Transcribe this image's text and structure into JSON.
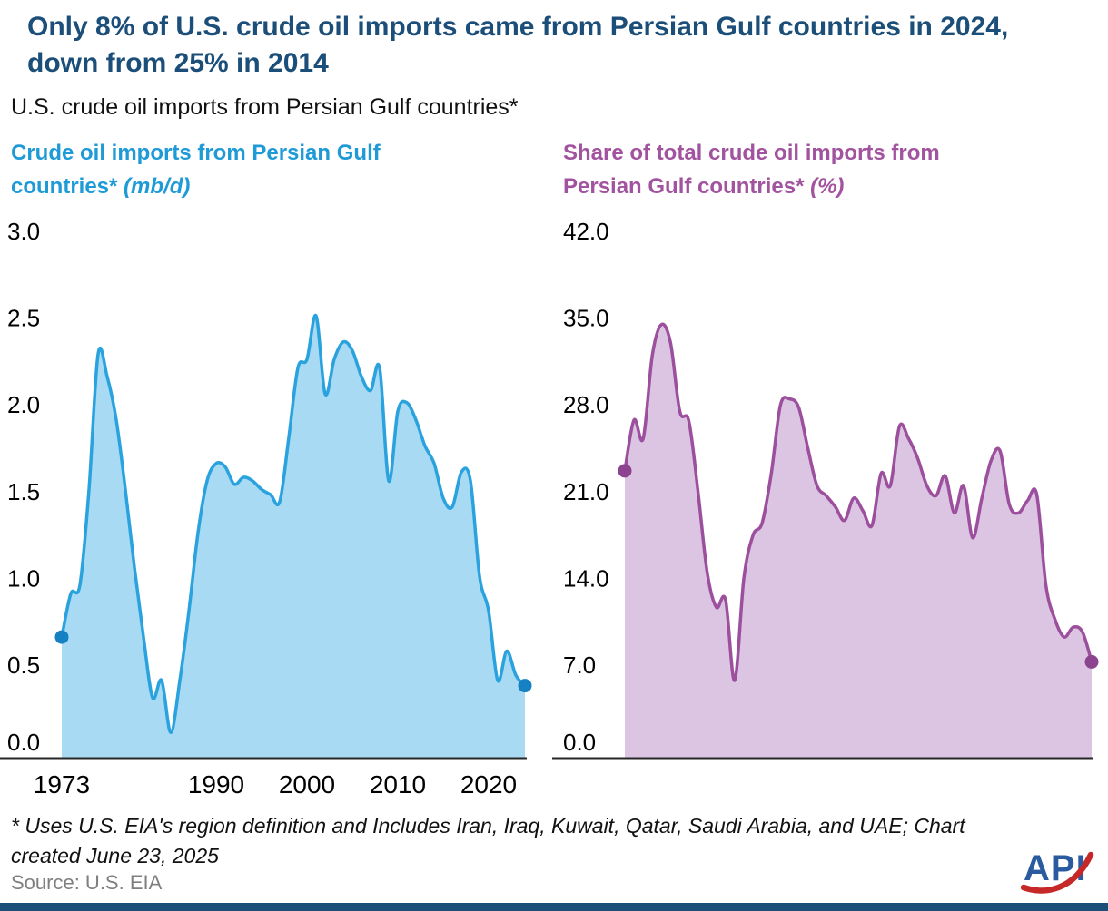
{
  "header": {
    "title_line1": "Only 8% of U.S. crude oil imports came from Persian Gulf countries in 2024,",
    "title_line2": "down from 25% in 2014",
    "subtitle": "U.S. crude oil imports from Persian Gulf countries*"
  },
  "colors": {
    "title_navy": "#1b4e78",
    "imports_blue": "#1e9ad6",
    "share_purple": "#a2539f",
    "axis_black": "#262626",
    "source_gray": "#7f7f7f",
    "footer_bar_navy": "#1b4e78",
    "logo_blue": "#2a5a9f",
    "logo_red": "#c62828"
  },
  "chart_data": [
    {
      "id": "imports",
      "type": "area",
      "title": "Crude oil imports from Persian Gulf countries*",
      "unit_label": "(mb/d)",
      "line_color": "#29a2de",
      "fill_color": "#a9daf3",
      "dot_color": "#1581c2",
      "ylim": [
        0,
        3.0
      ],
      "yticks": [
        3.0,
        2.5,
        2.0,
        1.5,
        1.0,
        0.5,
        0.0
      ],
      "xticks": [
        1973,
        1990,
        2000,
        2010,
        2020
      ],
      "x": [
        1973,
        1974,
        1975,
        1976,
        1977,
        1978,
        1979,
        1980,
        1981,
        1982,
        1983,
        1984,
        1985,
        1986,
        1987,
        1988,
        1989,
        1990,
        1991,
        1992,
        1993,
        1994,
        1995,
        1996,
        1997,
        1998,
        1999,
        2000,
        2001,
        2002,
        2003,
        2004,
        2005,
        2006,
        2007,
        2008,
        2009,
        2010,
        2011,
        2012,
        2013,
        2014,
        2015,
        2016,
        2017,
        2018,
        2019,
        2020,
        2021,
        2022,
        2023,
        2024
      ],
      "values": [
        0.7,
        0.95,
        1.0,
        1.55,
        2.33,
        2.2,
        1.95,
        1.55,
        1.1,
        0.7,
        0.35,
        0.45,
        0.15,
        0.45,
        0.85,
        1.3,
        1.6,
        1.7,
        1.68,
        1.58,
        1.62,
        1.6,
        1.55,
        1.52,
        1.48,
        1.85,
        2.25,
        2.3,
        2.55,
        2.1,
        2.3,
        2.4,
        2.35,
        2.2,
        2.12,
        2.25,
        1.6,
        2.0,
        2.05,
        1.95,
        1.8,
        1.7,
        1.5,
        1.45,
        1.65,
        1.6,
        1.05,
        0.85,
        0.45,
        0.62,
        0.48,
        0.42
      ]
    },
    {
      "id": "share",
      "type": "area",
      "title": "Share of total crude oil imports from Persian Gulf countries*",
      "unit_label": "(%)",
      "line_color": "#9c4f9d",
      "fill_color": "#dcc5e2",
      "dot_color": "#8d4490",
      "ylim": [
        0,
        42.0
      ],
      "yticks": [
        42.0,
        35.0,
        28.0,
        21.0,
        14.0,
        7.0,
        0.0
      ],
      "xticks": [],
      "x": [
        1973,
        1974,
        1975,
        1976,
        1977,
        1978,
        1979,
        1980,
        1981,
        1982,
        1983,
        1984,
        1985,
        1986,
        1987,
        1988,
        1989,
        1990,
        1991,
        1992,
        1993,
        1994,
        1995,
        1996,
        1997,
        1998,
        1999,
        2000,
        2001,
        2002,
        2003,
        2004,
        2005,
        2006,
        2007,
        2008,
        2009,
        2010,
        2011,
        2012,
        2013,
        2014,
        2015,
        2016,
        2017,
        2018,
        2019,
        2020,
        2021,
        2022,
        2023,
        2024
      ],
      "values": [
        23.2,
        27.3,
        25.8,
        32.5,
        35.0,
        33.5,
        28.0,
        27.2,
        21.5,
        15.0,
        12.2,
        12.8,
        6.3,
        14.5,
        18.0,
        19.0,
        23.0,
        28.5,
        29.0,
        28.3,
        25.0,
        22.0,
        21.2,
        20.3,
        19.2,
        21.0,
        20.0,
        18.8,
        23.0,
        22.0,
        26.8,
        25.8,
        24.2,
        22.0,
        21.2,
        22.8,
        19.8,
        22.0,
        17.8,
        21.0,
        24.0,
        24.8,
        20.5,
        19.8,
        20.8,
        21.3,
        14.0,
        11.2,
        9.8,
        10.6,
        10.2,
        7.8
      ]
    }
  ],
  "footer": {
    "footnote_line1": "* Uses U.S. EIA's region definition and Includes Iran, Iraq, Kuwait, Qatar, Saudi Arabia, and UAE;  Chart",
    "footnote_line2": "created June 23, 2025",
    "source": "Source: U.S. EIA",
    "logo_text": "API"
  }
}
